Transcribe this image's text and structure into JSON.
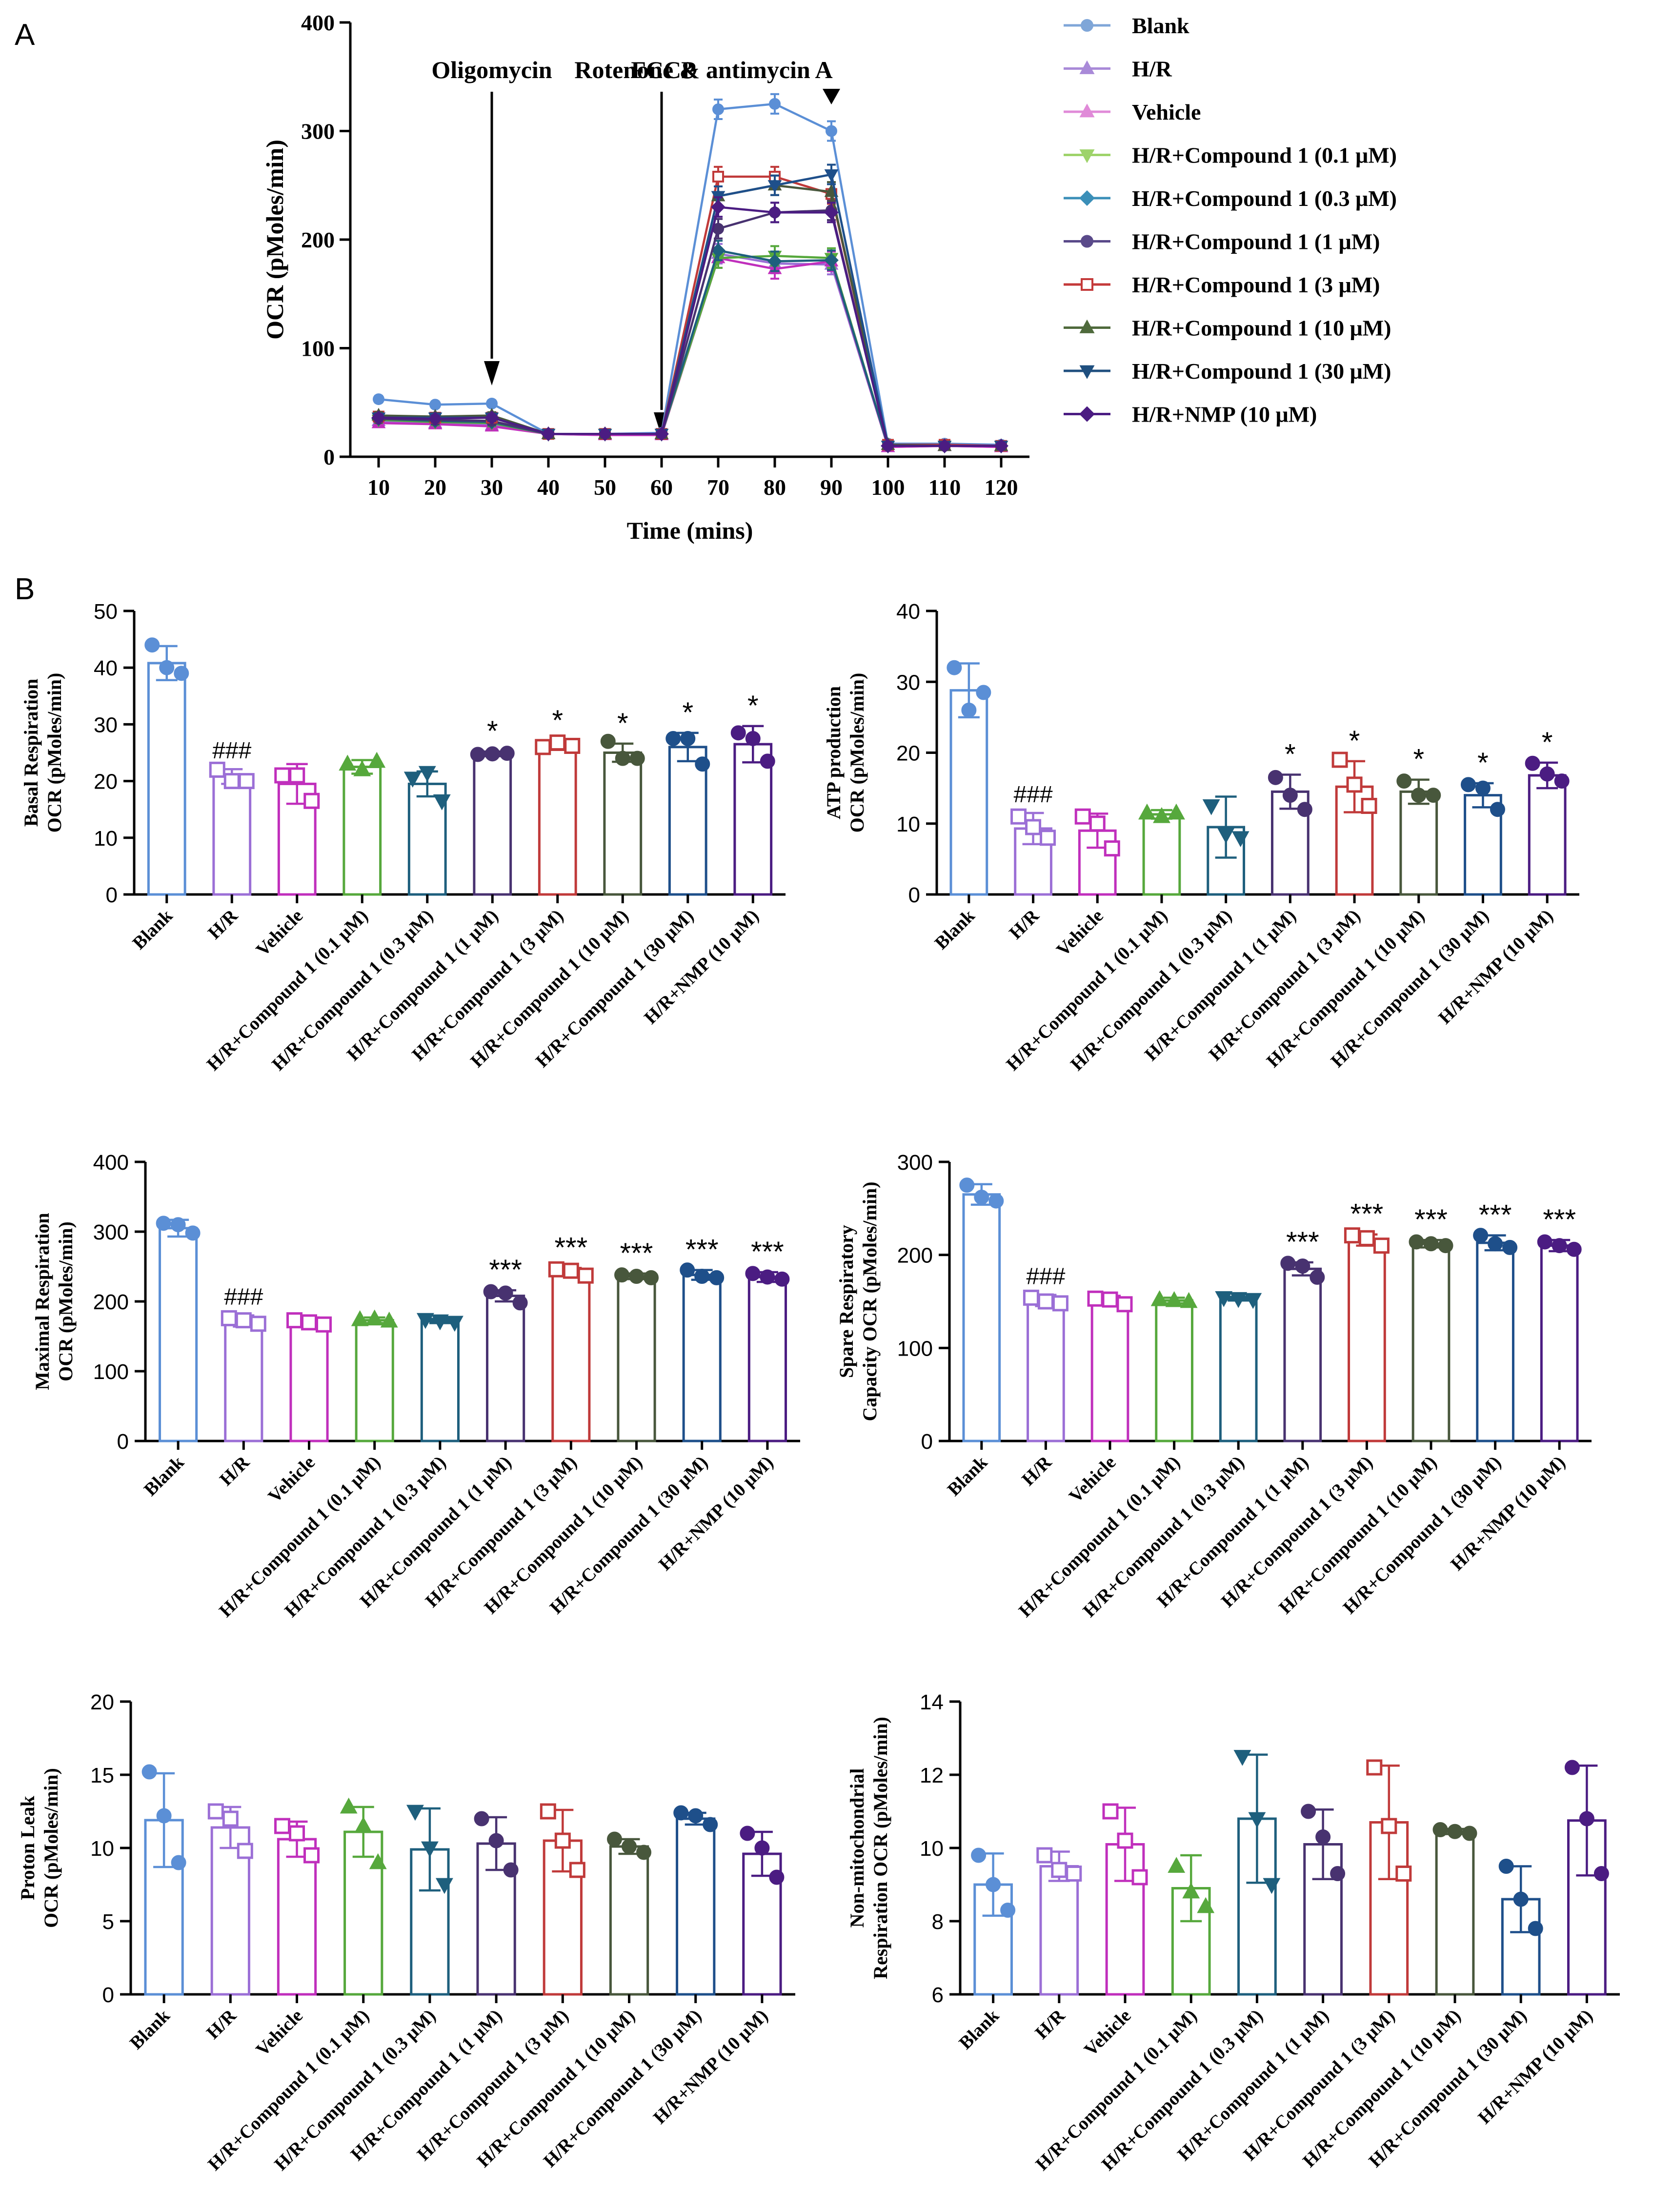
{
  "figure_labels": {
    "panel_a": "A",
    "panel_b": "B"
  },
  "palette": {
    "Blank": "#5b8fd6",
    "H/R": "#9b6fd6",
    "Vehicle": "#c02fbc",
    "H/R+Compound 1 (0.1 μM)": "#56a83c",
    "H/R+Compound 1 (0.3 μM)": "#1e5f7d",
    "H/R+Compound 1 (1 μM)": "#483270",
    "H/R+Compound 1 (3 μM)": "#c03a3a",
    "H/R+Compound 1 (10 μM)": "#48573c",
    "H/R+Compound 1 (30 μM)": "#1e4f8a",
    "H/R+NMP (10 μM)": "#4b1c82"
  },
  "legend_colors": {
    "Blank": "#7fa6d8",
    "H/R": "#a98ad8",
    "Vehicle": "#e08ad8",
    "H/R+Compound 1 (0.1 μM)": "#9ed36a",
    "H/R+Compound 1 (0.3 μM)": "#3b8fb8",
    "H/R+Compound 1 (1 μM)": "#5a4a8a",
    "H/R+Compound 1 (3 μM)": "#c43a3a",
    "H/R+Compound 1 (10 μM)": "#4f6a3c",
    "H/R+Compound 1 (30 μM)": "#1f4f7f",
    "H/R+NMP (10 μM)": "#4b1c82"
  },
  "chart_data": [
    {
      "type": "line",
      "title": "",
      "xlabel": "Time (mins)",
      "ylabel": "OCR (pMoles/min)",
      "x": [
        10,
        20,
        30,
        40,
        50,
        60,
        70,
        80,
        90,
        100,
        110,
        120
      ],
      "xlim": [
        5,
        125
      ],
      "ylim": [
        0,
        400
      ],
      "yticks": [
        0,
        100,
        200,
        300,
        400
      ],
      "annotations": [
        {
          "text": "Oligomycin",
          "x": 30,
          "arrow": "line"
        },
        {
          "text": "FCCP",
          "x": 60,
          "arrow": "line"
        },
        {
          "text": "Rotenone & antimycin A",
          "x": 90,
          "arrow": "triangle"
        }
      ],
      "series": [
        {
          "name": "Blank",
          "marker": "circle",
          "values": [
            53,
            48,
            49,
            21,
            21,
            22,
            320,
            325,
            300,
            12,
            12,
            11
          ]
        },
        {
          "name": "H/R",
          "marker": "triangle-up",
          "values": [
            33,
            31,
            29,
            21,
            20,
            21,
            187,
            178,
            177,
            9,
            10,
            9
          ]
        },
        {
          "name": "Vehicle",
          "marker": "triangle-up",
          "values": [
            31,
            30,
            28,
            21,
            20,
            20,
            183,
            173,
            180,
            9,
            10,
            9
          ]
        },
        {
          "name": "H/R+Compound 1 (0.1 μM)",
          "marker": "triangle-down",
          "values": [
            34,
            32,
            31,
            21,
            21,
            21,
            183,
            185,
            183,
            10,
            10,
            10
          ]
        },
        {
          "name": "H/R+Compound 1 (0.3 μM)",
          "marker": "diamond",
          "values": [
            35,
            33,
            32,
            21,
            21,
            21,
            190,
            180,
            181,
            10,
            10,
            10
          ]
        },
        {
          "name": "H/R+Compound 1 (1 μM)",
          "marker": "circle",
          "values": [
            35,
            34,
            33,
            21,
            21,
            21,
            210,
            225,
            227,
            10,
            10,
            10
          ]
        },
        {
          "name": "H/R+Compound 1 (3 μM)",
          "marker": "square",
          "values": [
            37,
            36,
            36,
            21,
            21,
            21,
            258,
            258,
            242,
            11,
            11,
            10
          ]
        },
        {
          "name": "H/R+Compound 1 (10 μM)",
          "marker": "triangle-up",
          "values": [
            38,
            37,
            38,
            21,
            21,
            21,
            240,
            250,
            244,
            11,
            10,
            10
          ]
        },
        {
          "name": "H/R+Compound 1 (30 μM)",
          "marker": "triangle-down",
          "values": [
            36,
            36,
            36,
            21,
            21,
            21,
            240,
            250,
            260,
            10,
            10,
            10
          ]
        },
        {
          "name": "H/R+NMP (10 μM)",
          "marker": "diamond",
          "values": [
            36,
            35,
            36,
            21,
            21,
            21,
            230,
            225,
            225,
            10,
            10,
            10
          ]
        }
      ]
    },
    {
      "type": "bar",
      "ylabel_lines": [
        "Basal Respiration",
        "OCR (pMoles/min)"
      ],
      "ylim": [
        0,
        50
      ],
      "yticks": [
        0,
        10,
        20,
        30,
        40,
        50
      ],
      "categories": [
        "Blank",
        "H/R",
        "Vehicle",
        "H/R+Compound 1 (0.1 μM)",
        "H/R+Compound 1 (0.3 μM)",
        "H/R+Compound 1 (1 μM)",
        "H/R+Compound 1 (3 μM)",
        "H/R+Compound 1 (10 μM)",
        "H/R+Compound 1 (30 μM)",
        "H/R+NMP (10 μM)"
      ],
      "markers": [
        "circle",
        "square",
        "square",
        "triangle-up",
        "triangle-down",
        "circle",
        "square",
        "circle",
        "circle",
        "circle"
      ],
      "values": [
        40.8,
        20.8,
        19.5,
        22.5,
        19.5,
        24.8,
        26.3,
        25.0,
        26.0,
        26.5
      ],
      "errors": [
        3.0,
        1.3,
        3.5,
        1.2,
        2.2,
        0.4,
        0.8,
        1.6,
        2.5,
        3.2
      ],
      "points": [
        [
          44,
          40,
          39
        ],
        [
          22,
          20,
          20
        ],
        [
          21,
          21,
          16.5
        ],
        [
          23,
          22,
          23.5
        ],
        [
          20.5,
          21.5,
          16.5
        ],
        [
          24.7,
          24.8,
          24.9
        ],
        [
          26,
          26.8,
          26.2
        ],
        [
          27,
          24,
          24
        ],
        [
          27.5,
          27.5,
          23
        ],
        [
          28.5,
          27.5,
          23.5
        ]
      ],
      "significance": [
        "",
        "###",
        "",
        "",
        "",
        "*",
        "*",
        "*",
        "*",
        "*"
      ]
    },
    {
      "type": "bar",
      "ylabel_lines": [
        "ATP production",
        "OCR (pMoles/min)"
      ],
      "ylim": [
        0,
        40
      ],
      "yticks": [
        0,
        10,
        20,
        30,
        40
      ],
      "categories": [
        "Blank",
        "H/R",
        "Vehicle",
        "H/R+Compound 1 (0.1 μM)",
        "H/R+Compound 1 (0.3 μM)",
        "H/R+Compound 1 (1 μM)",
        "H/R+Compound 1 (3 μM)",
        "H/R+Compound 1 (10 μM)",
        "H/R+Compound 1 (30 μM)",
        "H/R+NMP (10 μM)"
      ],
      "markers": [
        "circle",
        "square",
        "square",
        "triangle-up",
        "triangle-down",
        "circle",
        "square",
        "circle",
        "circle",
        "circle"
      ],
      "values": [
        28.8,
        9.3,
        9.0,
        11.3,
        9.5,
        14.5,
        15.2,
        14.5,
        14.0,
        16.8
      ],
      "errors": [
        3.8,
        2.2,
        2.4,
        0.6,
        4.3,
        2.4,
        3.6,
        1.7,
        1.7,
        1.8
      ],
      "points": [
        [
          32,
          26,
          28.5
        ],
        [
          11,
          9.5,
          8
        ],
        [
          11,
          10,
          6.5
        ],
        [
          11.5,
          11,
          11.5
        ],
        [
          12.5,
          8.5,
          8
        ],
        [
          16.5,
          14,
          12
        ],
        [
          19,
          15.5,
          12.5
        ],
        [
          16,
          14,
          14
        ],
        [
          15.5,
          15,
          12
        ],
        [
          18.5,
          17,
          16
        ]
      ],
      "significance": [
        "",
        "###",
        "",
        "",
        "",
        "*",
        "*",
        "*",
        "*",
        "*"
      ]
    },
    {
      "type": "bar",
      "ylabel_lines": [
        "Maximal Respiration",
        "OCR (pMoles/min)"
      ],
      "ylim": [
        0,
        400
      ],
      "yticks": [
        0,
        100,
        200,
        300,
        400
      ],
      "categories": [
        "Blank",
        "H/R",
        "Vehicle",
        "H/R+Compound 1 (0.1 μM)",
        "H/R+Compound 1 (0.3 μM)",
        "H/R+Compound 1 (1 μM)",
        "H/R+Compound 1 (3 μM)",
        "H/R+Compound 1 (10 μM)",
        "H/R+Compound 1 (30 μM)",
        "H/R+NMP (10 μM)"
      ],
      "markers": [
        "circle",
        "square",
        "square",
        "triangle-up",
        "triangle-down",
        "circle",
        "square",
        "circle",
        "circle",
        "circle"
      ],
      "values": [
        305,
        172,
        170,
        173,
        172,
        208,
        242,
        236,
        238,
        235
      ],
      "errors": [
        12,
        8,
        7,
        4,
        3,
        8,
        6,
        4,
        7,
        7
      ],
      "points": [
        [
          312,
          310,
          298
        ],
        [
          176,
          173,
          168
        ],
        [
          173,
          170,
          167
        ],
        [
          174,
          175,
          172
        ],
        [
          174,
          172,
          170
        ],
        [
          214,
          212,
          198
        ],
        [
          246,
          244,
          237
        ],
        [
          238,
          236,
          234
        ],
        [
          245,
          236,
          234
        ],
        [
          240,
          235,
          232
        ]
      ],
      "significance": [
        "",
        "###",
        "",
        "",
        "",
        "***",
        "***",
        "***",
        "***",
        "***"
      ]
    },
    {
      "type": "bar",
      "ylabel_lines": [
        "Spare Respiratory",
        "Capacity OCR (pMoles/min)"
      ],
      "ylim": [
        0,
        300
      ],
      "yticks": [
        0,
        100,
        200,
        300
      ],
      "categories": [
        "Blank",
        "H/R",
        "Vehicle",
        "H/R+Compound 1 (0.1 μM)",
        "H/R+Compound 1 (0.3 μM)",
        "H/R+Compound 1 (1 μM)",
        "H/R+Compound 1 (3 μM)",
        "H/R+Compound 1 (10 μM)",
        "H/R+Compound 1 (30 μM)",
        "H/R+NMP (10 μM)"
      ],
      "markers": [
        "circle",
        "square",
        "square",
        "triangle-up",
        "triangle-down",
        "circle",
        "square",
        "circle",
        "circle",
        "circle"
      ],
      "values": [
        265,
        151,
        151,
        151,
        153,
        185,
        216,
        212,
        213,
        210
      ],
      "errors": [
        11,
        6,
        5,
        3,
        2,
        7,
        6,
        4,
        8,
        6
      ],
      "points": [
        [
          275,
          262,
          258
        ],
        [
          154,
          150,
          148
        ],
        [
          153,
          152,
          147
        ],
        [
          152,
          151,
          150
        ],
        [
          154,
          153,
          152
        ],
        [
          191,
          188,
          176
        ],
        [
          221,
          218,
          210
        ],
        [
          214,
          212,
          210
        ],
        [
          221,
          212,
          208
        ],
        [
          214,
          210,
          206
        ]
      ],
      "significance": [
        "",
        "###",
        "",
        "",
        "",
        "***",
        "***",
        "***",
        "***",
        "***"
      ]
    },
    {
      "type": "bar",
      "ylabel_lines": [
        "Proton Leak",
        "OCR (pMoles/min)"
      ],
      "ylim": [
        0,
        20
      ],
      "yticks": [
        0,
        5,
        10,
        15,
        20
      ],
      "categories": [
        "Blank",
        "H/R",
        "Vehicle",
        "H/R+Compound 1 (0.1 μM)",
        "H/R+Compound 1 (0.3 μM)",
        "H/R+Compound 1 (1 μM)",
        "H/R+Compound 1 (3 μM)",
        "H/R+Compound 1 (10 μM)",
        "H/R+Compound 1 (30 μM)",
        "H/R+NMP (10 μM)"
      ],
      "markers": [
        "circle",
        "square",
        "square",
        "triangle-up",
        "triangle-down",
        "circle",
        "square",
        "circle",
        "circle",
        "circle"
      ],
      "values": [
        11.9,
        11.4,
        10.6,
        11.1,
        9.9,
        10.3,
        10.5,
        10.1,
        12.0,
        9.6
      ],
      "errors": [
        3.2,
        1.4,
        1.2,
        1.7,
        2.8,
        1.8,
        2.1,
        0.5,
        0.4,
        1.5
      ],
      "points": [
        [
          15.2,
          12.2,
          9
        ],
        [
          12.5,
          12,
          9.8
        ],
        [
          11.5,
          11,
          9.5
        ],
        [
          12.8,
          11.5,
          9
        ],
        [
          12.5,
          10,
          7.5
        ],
        [
          12,
          10.5,
          8.5
        ],
        [
          12.5,
          10.5,
          8.5
        ],
        [
          10.6,
          10.1,
          9.7
        ],
        [
          12.4,
          12.2,
          11.6
        ],
        [
          11,
          10,
          8
        ]
      ],
      "significance": [
        "",
        "",
        "",
        "",
        "",
        "",
        "",
        "",
        "",
        ""
      ]
    },
    {
      "type": "bar",
      "ylabel_lines": [
        "Non-mitochondrial",
        "Respiration OCR (pMoles/min)"
      ],
      "ylim": [
        6,
        14
      ],
      "yticks": [
        6,
        8,
        10,
        12,
        14
      ],
      "categories": [
        "Blank",
        "H/R",
        "Vehicle",
        "H/R+Compound 1 (0.1 μM)",
        "H/R+Compound 1 (0.3 μM)",
        "H/R+Compound 1 (1 μM)",
        "H/R+Compound 1 (3 μM)",
        "H/R+Compound 1 (10 μM)",
        "H/R+Compound 1 (30 μM)",
        "H/R+NMP (10 μM)"
      ],
      "markers": [
        "circle",
        "square",
        "square",
        "triangle-up",
        "triangle-down",
        "circle",
        "square",
        "circle",
        "circle",
        "circle"
      ],
      "values": [
        9.0,
        9.5,
        10.1,
        8.9,
        10.8,
        10.1,
        10.7,
        10.45,
        8.6,
        10.75
      ],
      "errors": [
        0.85,
        0.4,
        1.0,
        0.9,
        1.75,
        0.95,
        1.55,
        0.07,
        0.9,
        1.5
      ],
      "points": [
        [
          9.8,
          9,
          8.3
        ],
        [
          9.8,
          9.4,
          9.3
        ],
        [
          11,
          10.2,
          9.2
        ],
        [
          9.5,
          8.8,
          8.4
        ],
        [
          12.5,
          10.8,
          9
        ],
        [
          11,
          10.3,
          9.3
        ],
        [
          12.2,
          10.6,
          9.3
        ],
        [
          10.5,
          10.45,
          10.4
        ],
        [
          9.5,
          8.6,
          7.8
        ],
        [
          12.2,
          10.8,
          9.3
        ]
      ],
      "significance": [
        "",
        "",
        "",
        "",
        "",
        "",
        "",
        "",
        "",
        ""
      ]
    }
  ]
}
